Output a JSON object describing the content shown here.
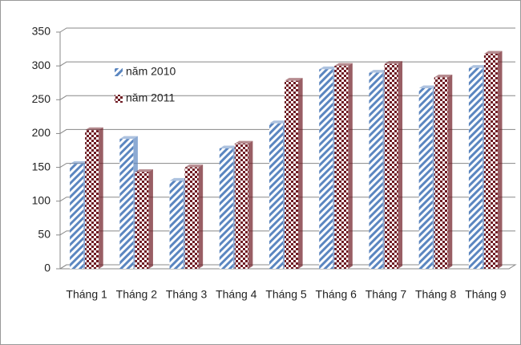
{
  "chart_data": {
    "type": "bar",
    "categories": [
      "Tháng 1",
      "Tháng 2",
      "Tháng 3",
      "Tháng 4",
      "Tháng 5",
      "Tháng 6",
      "Tháng 7",
      "Tháng 8",
      "Tháng 9"
    ],
    "series": [
      {
        "name": "năm 2010",
        "color": "#5b86c0",
        "pattern": "diagonal",
        "values": [
          155,
          192,
          130,
          178,
          215,
          295,
          290,
          267,
          297
        ]
      },
      {
        "name": "năm 2011",
        "color": "#6e1a22",
        "pattern": "checker",
        "values": [
          205,
          143,
          150,
          185,
          278,
          300,
          303,
          283,
          318
        ]
      }
    ],
    "ylim": [
      0,
      350
    ],
    "yticks": [
      0,
      50,
      100,
      150,
      200,
      250,
      300,
      350
    ],
    "grid": true,
    "legend": "upper left"
  }
}
